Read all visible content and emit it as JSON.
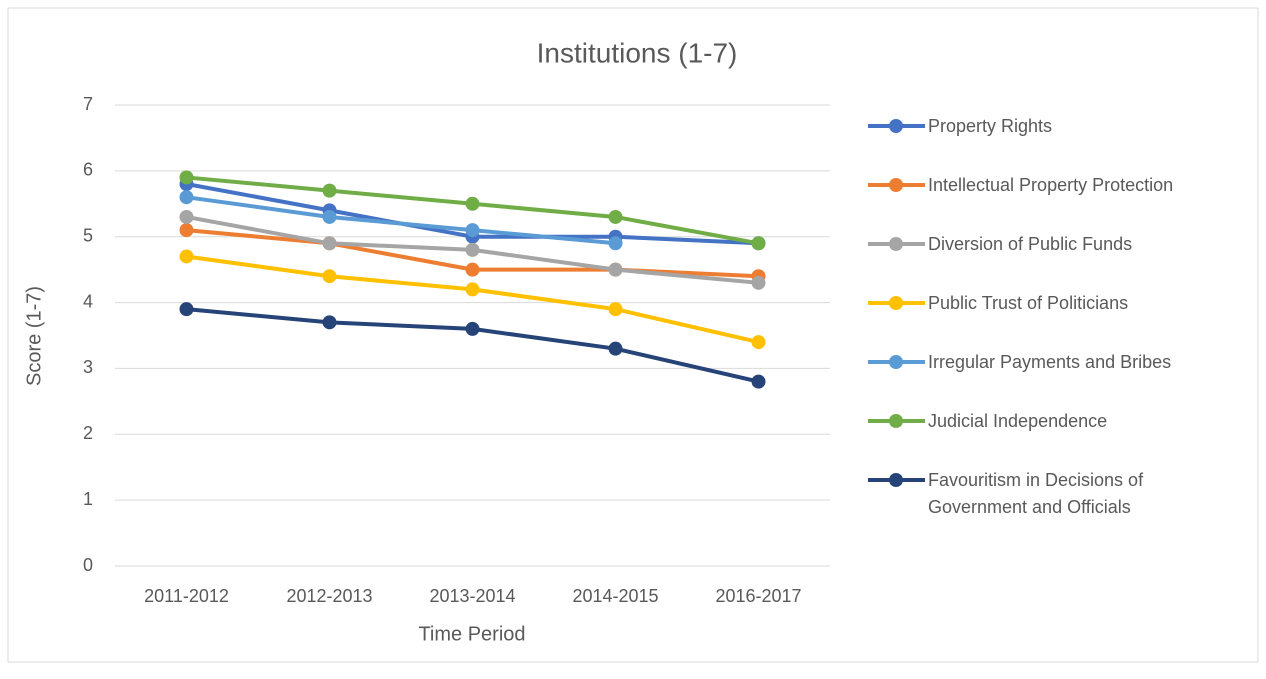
{
  "chart_data": {
    "type": "line",
    "title": "Institutions (1-7)",
    "x_label": "Time Period",
    "y_label": "Score (1-7)",
    "categories": [
      "2011-2012",
      "2012-2013",
      "2013-2014",
      "2014-2015",
      "2016-2017"
    ],
    "series": [
      {
        "name": "Property Rights",
        "color": "#4472c4",
        "values": [
          5.8,
          5.4,
          5.0,
          5.0,
          4.9
        ]
      },
      {
        "name": "Intellectual Property Protection",
        "color": "#ed7d31",
        "values": [
          5.1,
          4.9,
          4.5,
          4.5,
          4.4
        ]
      },
      {
        "name": "Diversion of Public Funds",
        "color": "#a5a5a5",
        "values": [
          5.3,
          4.9,
          4.8,
          4.5,
          4.3
        ]
      },
      {
        "name": "Public Trust of Politicians",
        "color": "#ffc000",
        "values": [
          4.7,
          4.4,
          4.2,
          3.9,
          3.4
        ]
      },
      {
        "name": "Irregular Payments and Bribes",
        "color": "#5b9bd5",
        "values": [
          5.6,
          5.3,
          5.1,
          4.9,
          null
        ]
      },
      {
        "name": "Judicial Independence",
        "color": "#70ad47",
        "values": [
          5.9,
          5.7,
          5.5,
          5.3,
          4.9
        ]
      },
      {
        "name": "Favouritism in Decisions of Government and Officials",
        "color": "#264478",
        "values": [
          3.9,
          3.7,
          3.6,
          3.3,
          2.8
        ]
      }
    ],
    "ylim": [
      0,
      7
    ],
    "yticks": [
      0,
      1,
      2,
      3,
      4,
      5,
      6,
      7
    ],
    "grid": true,
    "legend": "right"
  }
}
